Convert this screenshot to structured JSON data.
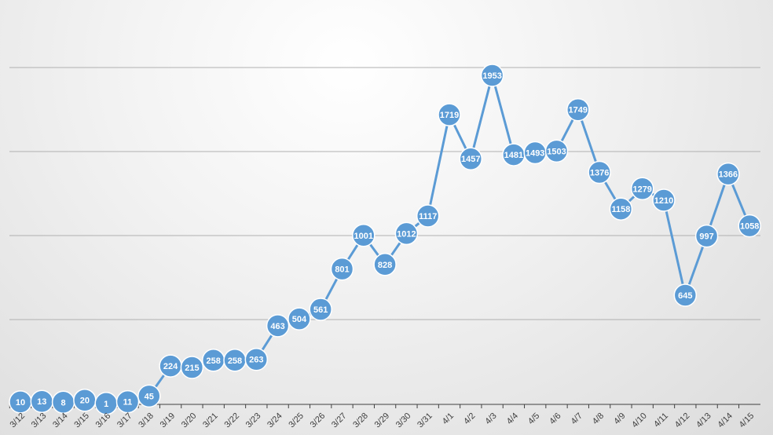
{
  "chart_data": {
    "type": "line",
    "title": "",
    "xlabel": "",
    "ylabel": "",
    "categories": [
      "3/12",
      "3/13",
      "3/14",
      "3/15",
      "3/16",
      "3/17",
      "3/18",
      "3/19",
      "3/20",
      "3/21",
      "3/22",
      "3/23",
      "3/24",
      "3/25",
      "3/26",
      "3/27",
      "3/28",
      "3/29",
      "3/30",
      "3/31",
      "4/1",
      "4/2",
      "4/3",
      "4/4",
      "4/5",
      "4/6",
      "4/7",
      "4/8",
      "4/9",
      "4/10",
      "4/11",
      "4/12",
      "4/13",
      "4/14",
      "4/15"
    ],
    "values": [
      10,
      13,
      8,
      20,
      1,
      11,
      45,
      224,
      215,
      258,
      258,
      263,
      463,
      504,
      561,
      801,
      1001,
      828,
      1012,
      1117,
      1719,
      1457,
      1953,
      1481,
      1493,
      1503,
      1749,
      1376,
      1158,
      1279,
      1210,
      645,
      997,
      1366,
      1058
    ],
    "ylim": [
      0,
      2000
    ],
    "y_gridlines": [
      500,
      1000,
      1500,
      2000
    ],
    "grid": true,
    "legend": "none",
    "data_labels": true,
    "colors": {
      "line": "#5b9bd5",
      "marker": "#5b9bd5",
      "label": "#ffffff",
      "grid": "#b0b0b0",
      "axis": "#404040"
    }
  }
}
